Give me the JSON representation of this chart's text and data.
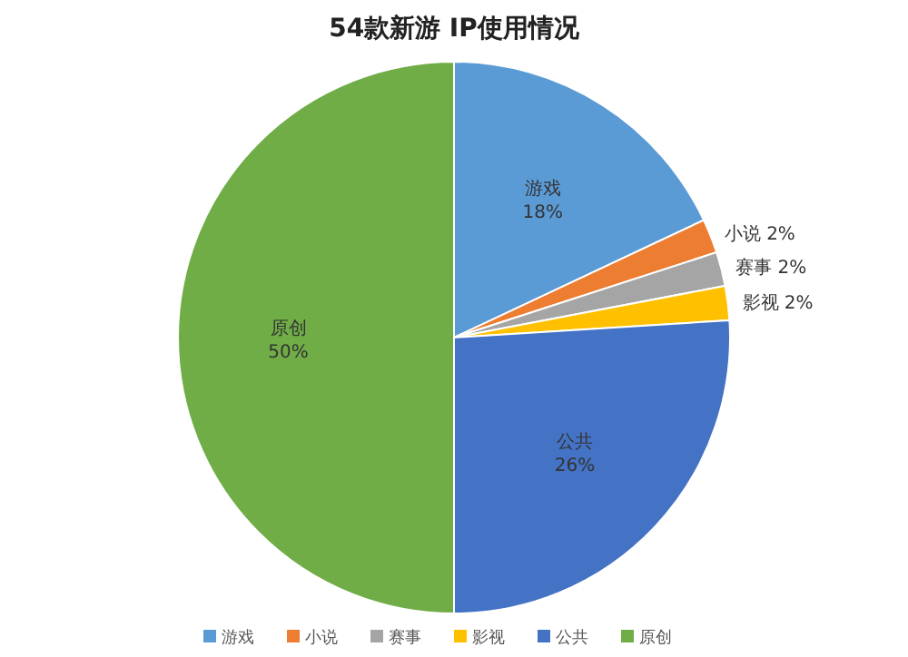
{
  "chart_data": {
    "type": "pie",
    "title": "54款新游 IP使用情况",
    "categories": [
      "游戏",
      "小说",
      "赛事",
      "影视",
      "公共",
      "原创"
    ],
    "values": [
      18,
      2,
      2,
      2,
      26,
      50
    ],
    "colors": [
      "#5b9bd5",
      "#ed7d31",
      "#a5a5a5",
      "#ffc000",
      "#4472c4",
      "#70ad47"
    ],
    "value_labels": [
      "18%",
      "2%",
      "2%",
      "2%",
      "26%",
      "50%"
    ],
    "legend": "bottom"
  }
}
